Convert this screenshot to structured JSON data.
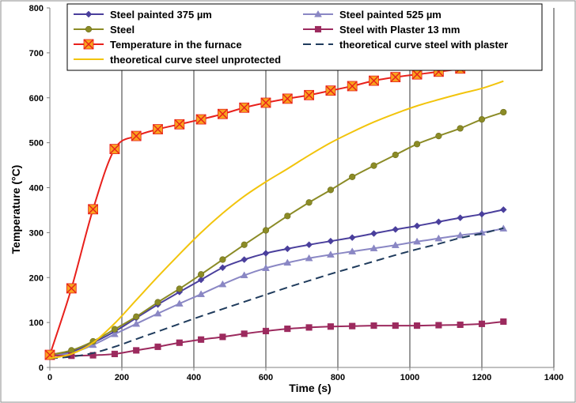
{
  "chart_data": {
    "type": "line",
    "xlabel": "Time (s)",
    "ylabel": "Temperature (°C)",
    "xlim": [
      0,
      1400
    ],
    "ylim": [
      0,
      800
    ],
    "x_ticks": [
      0,
      200,
      400,
      600,
      800,
      1000,
      1200,
      1400
    ],
    "y_ticks": [
      0,
      100,
      200,
      300,
      400,
      500,
      600,
      700,
      800
    ],
    "grid": "vertical gridlines",
    "legend_position": "top",
    "series": [
      {
        "name": "Steel painted 375 µm",
        "color": "#4a3f9c",
        "marker": "diamond",
        "x": [
          0,
          60,
          120,
          180,
          240,
          300,
          360,
          420,
          480,
          540,
          600,
          660,
          720,
          780,
          840,
          900,
          960,
          1020,
          1080,
          1140,
          1200,
          1260
        ],
        "y": [
          27,
          35,
          55,
          80,
          110,
          140,
          168,
          195,
          222,
          240,
          254,
          264,
          273,
          281,
          289,
          298,
          307,
          315,
          324,
          333,
          341,
          351
        ]
      },
      {
        "name": "Steel painted 525 µm",
        "color": "#8a87c4",
        "marker": "triangle",
        "x": [
          0,
          60,
          120,
          180,
          240,
          300,
          360,
          420,
          480,
          540,
          600,
          660,
          720,
          780,
          840,
          900,
          960,
          1020,
          1080,
          1140,
          1200,
          1260
        ],
        "y": [
          27,
          32,
          50,
          74,
          97,
          120,
          142,
          163,
          185,
          205,
          221,
          233,
          243,
          251,
          258,
          265,
          272,
          280,
          287,
          294,
          300,
          309
        ]
      },
      {
        "name": "Steel",
        "color": "#8b8b26",
        "marker": "circle",
        "x": [
          0,
          60,
          120,
          180,
          240,
          300,
          360,
          420,
          480,
          540,
          600,
          660,
          720,
          780,
          840,
          900,
          960,
          1020,
          1080,
          1140,
          1200,
          1260
        ],
        "y": [
          28,
          38,
          58,
          85,
          113,
          145,
          175,
          207,
          240,
          273,
          305,
          337,
          367,
          395,
          424,
          449,
          473,
          497,
          515,
          532,
          552,
          568
        ]
      },
      {
        "name": "Steel with Plaster 13 mm",
        "color": "#9c2a5e",
        "marker": "square",
        "x": [
          0,
          60,
          120,
          180,
          240,
          300,
          360,
          420,
          480,
          540,
          600,
          660,
          720,
          780,
          840,
          900,
          960,
          1020,
          1080,
          1140,
          1200,
          1260
        ],
        "y": [
          27,
          26,
          27,
          30,
          38,
          46,
          55,
          62,
          68,
          75,
          81,
          86,
          89,
          91,
          92,
          93,
          93,
          93,
          94,
          95,
          97,
          102
        ]
      },
      {
        "name": "Temperature in the furnace",
        "color": "#e8201c",
        "marker": "x-square",
        "x": [
          0,
          60,
          120,
          180,
          240,
          300,
          360,
          420,
          480,
          540,
          600,
          660,
          720,
          780,
          840,
          900,
          960,
          1020,
          1080,
          1140,
          1200,
          1260
        ],
        "y": [
          28,
          176,
          352,
          486,
          515,
          530,
          541,
          552,
          564,
          578,
          589,
          598,
          606,
          616,
          626,
          638,
          646,
          652,
          658,
          665,
          680,
          688
        ]
      },
      {
        "name": "theoretical curve steel with plaster",
        "color": "#1f3b5c",
        "marker": "none",
        "dash": true,
        "x": [
          0,
          60,
          120,
          180,
          240,
          300,
          360,
          420,
          480,
          540,
          600,
          660,
          720,
          780,
          840,
          900,
          960,
          1020,
          1080,
          1140,
          1200,
          1260
        ],
        "y": [
          20,
          24,
          32,
          46,
          63,
          80,
          97,
          114,
          130,
          146,
          162,
          178,
          193,
          208,
          222,
          236,
          250,
          263,
          275,
          288,
          298,
          310
        ]
      },
      {
        "name": "theoretical curve steel unprotected",
        "color": "#f2c40c",
        "marker": "none",
        "x": [
          0,
          60,
          120,
          180,
          240,
          300,
          360,
          420,
          480,
          540,
          600,
          660,
          720,
          780,
          840,
          900,
          960,
          1020,
          1080,
          1140,
          1200,
          1260
        ],
        "y": [
          20,
          30,
          55,
          98,
          150,
          202,
          252,
          300,
          343,
          381,
          413,
          442,
          472,
          500,
          524,
          546,
          565,
          582,
          596,
          609,
          621,
          637
        ]
      }
    ]
  }
}
